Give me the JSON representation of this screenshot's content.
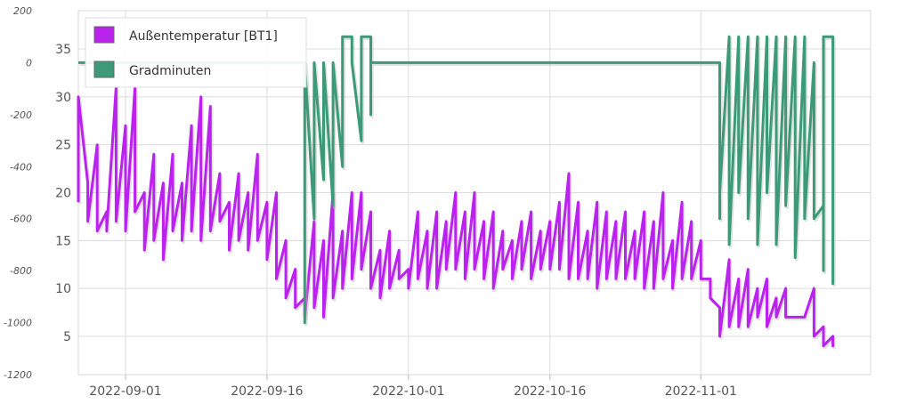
{
  "chart_data": {
    "type": "line",
    "title": "",
    "xlabel": "",
    "ylabel": "",
    "x_range": [
      "2022-08-27",
      "2022-11-19"
    ],
    "x_ticks": [
      "2022-09-01",
      "2022-09-16",
      "2022-10-01",
      "2022-10-16",
      "2022-11-01"
    ],
    "y_axes": {
      "gradminuten": {
        "side": "left",
        "range": [
          -1200,
          200
        ],
        "ticks": [
          "200",
          "0",
          "-200",
          "-400",
          "-600",
          "-800",
          "-1000",
          "-1200"
        ]
      },
      "temperature": {
        "side": "inner-left",
        "range": [
          1,
          39
        ],
        "ticks": [
          "35",
          "30",
          "25",
          "20",
          "15",
          "10",
          "5"
        ]
      }
    },
    "grid": true,
    "legend_position": "top-left",
    "series": [
      {
        "name": "Außentemperatur [BT1]",
        "color": "#bb22ee",
        "axis": "temperature",
        "points": [
          [
            "2022-08-27",
            19
          ],
          [
            "2022-08-27",
            30
          ],
          [
            "2022-08-28",
            21
          ],
          [
            "2022-08-28",
            17
          ],
          [
            "2022-08-29",
            25
          ],
          [
            "2022-08-29",
            16
          ],
          [
            "2022-08-30",
            18
          ],
          [
            "2022-08-30",
            16
          ],
          [
            "2022-08-31",
            31
          ],
          [
            "2022-08-31",
            17
          ],
          [
            "2022-09-01",
            27
          ],
          [
            "2022-09-01",
            16
          ],
          [
            "2022-09-02",
            31
          ],
          [
            "2022-09-02",
            18
          ],
          [
            "2022-09-03",
            20
          ],
          [
            "2022-09-03",
            14
          ],
          [
            "2022-09-04",
            24
          ],
          [
            "2022-09-04",
            15
          ],
          [
            "2022-09-05",
            21
          ],
          [
            "2022-09-05",
            13
          ],
          [
            "2022-09-06",
            24
          ],
          [
            "2022-09-06",
            16
          ],
          [
            "2022-09-07",
            21
          ],
          [
            "2022-09-07",
            15
          ],
          [
            "2022-09-08",
            27
          ],
          [
            "2022-09-08",
            16
          ],
          [
            "2022-09-09",
            30
          ],
          [
            "2022-09-09",
            15
          ],
          [
            "2022-09-10",
            29
          ],
          [
            "2022-09-10",
            16
          ],
          [
            "2022-09-11",
            22
          ],
          [
            "2022-09-11",
            17
          ],
          [
            "2022-09-12",
            19
          ],
          [
            "2022-09-12",
            14
          ],
          [
            "2022-09-13",
            22
          ],
          [
            "2022-09-13",
            15
          ],
          [
            "2022-09-14",
            20
          ],
          [
            "2022-09-14",
            14
          ],
          [
            "2022-09-15",
            24
          ],
          [
            "2022-09-15",
            15
          ],
          [
            "2022-09-16",
            19
          ],
          [
            "2022-09-16",
            13
          ],
          [
            "2022-09-17",
            20
          ],
          [
            "2022-09-17",
            11
          ],
          [
            "2022-09-18",
            15
          ],
          [
            "2022-09-18",
            9
          ],
          [
            "2022-09-19",
            12
          ],
          [
            "2022-09-19",
            8
          ],
          [
            "2022-09-20",
            9
          ],
          [
            "2022-09-20",
            7
          ],
          [
            "2022-09-21",
            17
          ],
          [
            "2022-09-21",
            8
          ],
          [
            "2022-09-22",
            15
          ],
          [
            "2022-09-22",
            7
          ],
          [
            "2022-09-23",
            20
          ],
          [
            "2022-09-23",
            9
          ],
          [
            "2022-09-24",
            16
          ],
          [
            "2022-09-24",
            10
          ],
          [
            "2022-09-25",
            20
          ],
          [
            "2022-09-25",
            11
          ],
          [
            "2022-09-26",
            20
          ],
          [
            "2022-09-26",
            12
          ],
          [
            "2022-09-27",
            18
          ],
          [
            "2022-09-27",
            10
          ],
          [
            "2022-09-28",
            14
          ],
          [
            "2022-09-28",
            9
          ],
          [
            "2022-09-29",
            16
          ],
          [
            "2022-09-29",
            10
          ],
          [
            "2022-09-30",
            14
          ],
          [
            "2022-09-30",
            11
          ],
          [
            "2022-10-01",
            12
          ],
          [
            "2022-10-01",
            10
          ],
          [
            "2022-10-02",
            18
          ],
          [
            "2022-10-02",
            11
          ],
          [
            "2022-10-03",
            16
          ],
          [
            "2022-10-03",
            10
          ],
          [
            "2022-10-04",
            18
          ],
          [
            "2022-10-04",
            10
          ],
          [
            "2022-10-05",
            17
          ],
          [
            "2022-10-05",
            12
          ],
          [
            "2022-10-06",
            20
          ],
          [
            "2022-10-06",
            12
          ],
          [
            "2022-10-07",
            18
          ],
          [
            "2022-10-07",
            11
          ],
          [
            "2022-10-08",
            20
          ],
          [
            "2022-10-08",
            12
          ],
          [
            "2022-10-09",
            17
          ],
          [
            "2022-10-09",
            11
          ],
          [
            "2022-10-10",
            18
          ],
          [
            "2022-10-10",
            10
          ],
          [
            "2022-10-11",
            16
          ],
          [
            "2022-10-11",
            12
          ],
          [
            "2022-10-12",
            15
          ],
          [
            "2022-10-12",
            11
          ],
          [
            "2022-10-13",
            17
          ],
          [
            "2022-10-13",
            12
          ],
          [
            "2022-10-14",
            18
          ],
          [
            "2022-10-14",
            11
          ],
          [
            "2022-10-15",
            16
          ],
          [
            "2022-10-15",
            12
          ],
          [
            "2022-10-16",
            17
          ],
          [
            "2022-10-16",
            12
          ],
          [
            "2022-10-17",
            19
          ],
          [
            "2022-10-17",
            12
          ],
          [
            "2022-10-18",
            22
          ],
          [
            "2022-10-18",
            11
          ],
          [
            "2022-10-19",
            19
          ],
          [
            "2022-10-19",
            11
          ],
          [
            "2022-10-20",
            16
          ],
          [
            "2022-10-20",
            11
          ],
          [
            "2022-10-21",
            19
          ],
          [
            "2022-10-21",
            10
          ],
          [
            "2022-10-22",
            18
          ],
          [
            "2022-10-22",
            11
          ],
          [
            "2022-10-23",
            17
          ],
          [
            "2022-10-23",
            11
          ],
          [
            "2022-10-24",
            18
          ],
          [
            "2022-10-24",
            11
          ],
          [
            "2022-10-25",
            16
          ],
          [
            "2022-10-25",
            11
          ],
          [
            "2022-10-26",
            18
          ],
          [
            "2022-10-26",
            10
          ],
          [
            "2022-10-27",
            17
          ],
          [
            "2022-10-27",
            10
          ],
          [
            "2022-10-28",
            20
          ],
          [
            "2022-10-28",
            11
          ],
          [
            "2022-10-29",
            15
          ],
          [
            "2022-10-29",
            10
          ],
          [
            "2022-10-30",
            19
          ],
          [
            "2022-10-30",
            11
          ],
          [
            "2022-10-31",
            17
          ],
          [
            "2022-10-31",
            11
          ],
          [
            "2022-11-01",
            15
          ],
          [
            "2022-11-01",
            11
          ],
          [
            "2022-11-02",
            11
          ],
          [
            "2022-11-02",
            9
          ],
          [
            "2022-11-03",
            8
          ],
          [
            "2022-11-03",
            5
          ],
          [
            "2022-11-04",
            13
          ],
          [
            "2022-11-04",
            6
          ],
          [
            "2022-11-05",
            11
          ],
          [
            "2022-11-05",
            6
          ],
          [
            "2022-11-06",
            12
          ],
          [
            "2022-11-06",
            6
          ],
          [
            "2022-11-07",
            10
          ],
          [
            "2022-11-07",
            7
          ],
          [
            "2022-11-08",
            11
          ],
          [
            "2022-11-08",
            6
          ],
          [
            "2022-11-09",
            9
          ],
          [
            "2022-11-09",
            7
          ],
          [
            "2022-11-10",
            10
          ],
          [
            "2022-11-10",
            7
          ],
          [
            "2022-11-11",
            7
          ],
          [
            "2022-11-11",
            7
          ],
          [
            "2022-11-12",
            7
          ],
          [
            "2022-11-12",
            7
          ],
          [
            "2022-11-13",
            10
          ],
          [
            "2022-11-13",
            5
          ],
          [
            "2022-11-14",
            6
          ],
          [
            "2022-11-14",
            4
          ],
          [
            "2022-11-15",
            5
          ],
          [
            "2022-11-15",
            4
          ],
          [
            "2022-11-15",
            5
          ]
        ]
      },
      {
        "name": "Gradminuten",
        "color": "#3d9a78",
        "axis": "gradminuten",
        "points": [
          [
            "2022-08-27",
            0
          ],
          [
            "2022-09-20",
            0
          ],
          [
            "2022-09-20",
            -1000
          ],
          [
            "2022-09-20",
            0
          ],
          [
            "2022-09-21",
            -600
          ],
          [
            "2022-09-21",
            0
          ],
          [
            "2022-09-22",
            -450
          ],
          [
            "2022-09-22",
            0
          ],
          [
            "2022-09-23",
            -550
          ],
          [
            "2022-09-23",
            0
          ],
          [
            "2022-09-24",
            -400
          ],
          [
            "2022-09-24",
            0
          ],
          [
            "2022-09-24",
            100
          ],
          [
            "2022-09-25",
            100
          ],
          [
            "2022-09-25",
            0
          ],
          [
            "2022-09-26",
            -300
          ],
          [
            "2022-09-26",
            100
          ],
          [
            "2022-09-27",
            100
          ],
          [
            "2022-09-27",
            -200
          ],
          [
            "2022-09-27",
            0
          ],
          [
            "2022-11-03",
            0
          ],
          [
            "2022-11-03",
            -600
          ],
          [
            "2022-11-03",
            -500
          ],
          [
            "2022-11-04",
            100
          ],
          [
            "2022-11-04",
            -700
          ],
          [
            "2022-11-05",
            100
          ],
          [
            "2022-11-05",
            -500
          ],
          [
            "2022-11-06",
            100
          ],
          [
            "2022-11-06",
            -600
          ],
          [
            "2022-11-07",
            100
          ],
          [
            "2022-11-07",
            -700
          ],
          [
            "2022-11-08",
            100
          ],
          [
            "2022-11-08",
            -500
          ],
          [
            "2022-11-09",
            100
          ],
          [
            "2022-11-09",
            -700
          ],
          [
            "2022-11-10",
            100
          ],
          [
            "2022-11-10",
            -550
          ],
          [
            "2022-11-11",
            100
          ],
          [
            "2022-11-11",
            -750
          ],
          [
            "2022-11-12",
            100
          ],
          [
            "2022-11-12",
            -600
          ],
          [
            "2022-11-13",
            0
          ],
          [
            "2022-11-13",
            -600
          ],
          [
            "2022-11-14",
            -550
          ],
          [
            "2022-11-14",
            -800
          ],
          [
            "2022-11-14",
            100
          ],
          [
            "2022-11-15",
            100
          ],
          [
            "2022-11-15",
            -850
          ],
          [
            "2022-11-15",
            -400
          ],
          [
            "2022-11-15",
            -500
          ]
        ]
      }
    ]
  }
}
